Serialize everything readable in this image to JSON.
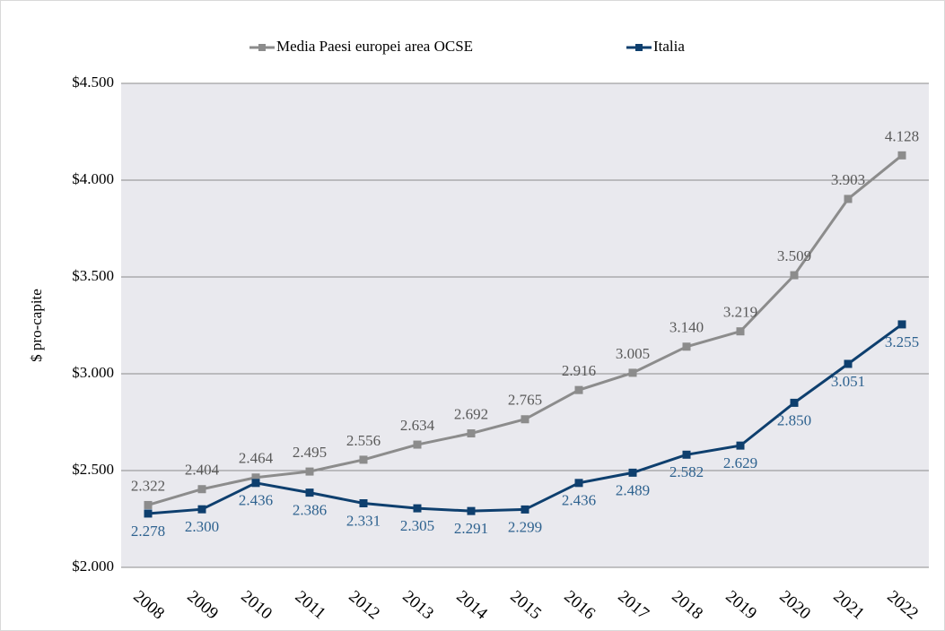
{
  "chart_data": {
    "type": "line",
    "categories": [
      "2008",
      "2009",
      "2010",
      "2011",
      "2012",
      "2013",
      "2014",
      "2015",
      "2016",
      "2017",
      "2018",
      "2019",
      "2020",
      "2021",
      "2022"
    ],
    "y_label": "$ pro-capite",
    "series": [
      {
        "name": "Media Paesi europei area OCSE",
        "color": "#8c8c8c",
        "label_color": "#595959",
        "values": [
          2322,
          2404,
          2464,
          2495,
          2556,
          2634,
          2692,
          2765,
          2916,
          3005,
          3140,
          3219,
          3509,
          3903,
          4128
        ],
        "value_labels": [
          "2.322",
          "2.404",
          "2.464",
          "2.495",
          "2.556",
          "2.634",
          "2.692",
          "2.765",
          "2.916",
          "3.005",
          "3.140",
          "3.219",
          "3.509",
          "3.903",
          "4.128"
        ]
      },
      {
        "name": "Italia",
        "color": "#0e3f6e",
        "label_color": "#2e628f",
        "values": [
          2278,
          2300,
          2436,
          2386,
          2331,
          2305,
          2291,
          2299,
          2436,
          2489,
          2582,
          2629,
          2850,
          3051,
          3255
        ],
        "value_labels": [
          "2.278",
          "2.300",
          "2.436",
          "2.386",
          "2.331",
          "2.305",
          "2.291",
          "2.299",
          "2.436",
          "2.489",
          "2.582",
          "2.629",
          "2.850",
          "3.051",
          "3.255"
        ]
      }
    ],
    "ylim": [
      2000,
      4500
    ],
    "yticks": [
      {
        "value": 2000,
        "label": "$2.000"
      },
      {
        "value": 2500,
        "label": "$2.500"
      },
      {
        "value": 3000,
        "label": "$3.000"
      },
      {
        "value": 3500,
        "label": "$3.500"
      },
      {
        "value": 4000,
        "label": "$4.000"
      },
      {
        "value": 4500,
        "label": "$4.500"
      }
    ],
    "grid": true,
    "legend": "top"
  }
}
